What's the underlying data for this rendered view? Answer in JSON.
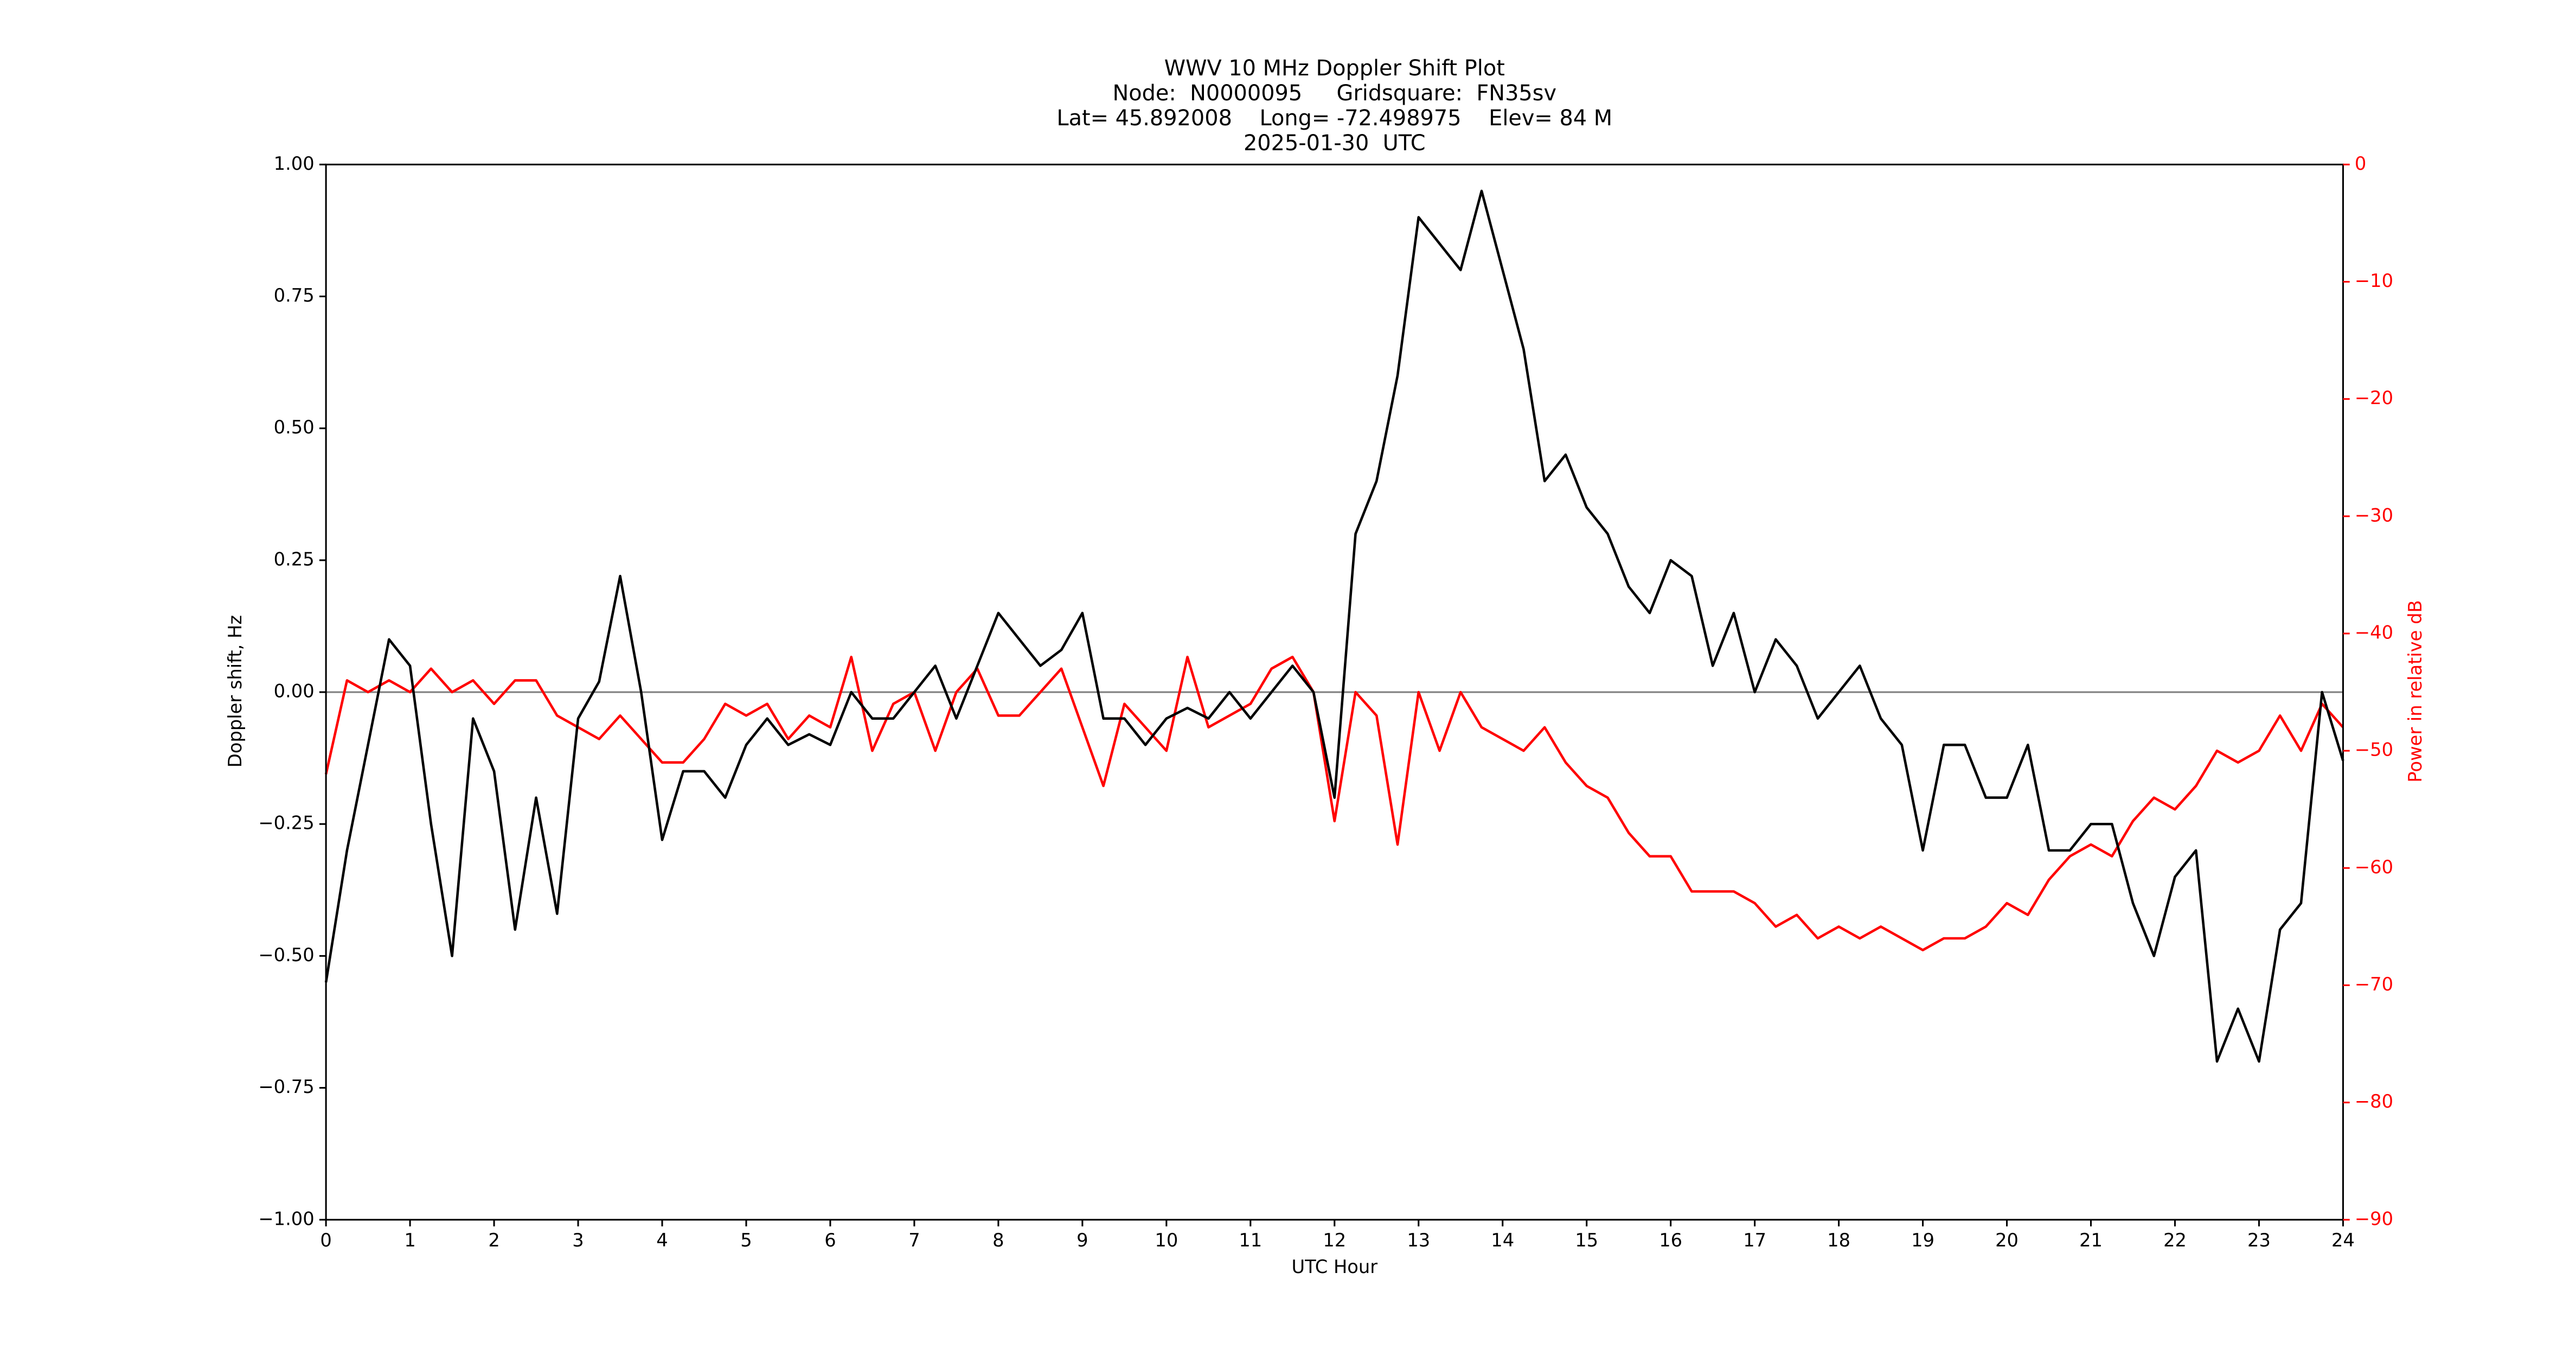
{
  "chart_data": {
    "type": "line",
    "title": "WWV 10 MHz Doppler Shift Plot",
    "subtitle": [
      "Node:  N0000095     Gridsquare:  FN35sv",
      "Lat= 45.892008    Long= -72.498975    Elev= 84 M",
      "2025-01-30  UTC"
    ],
    "xlabel": "UTC Hour",
    "ylabel": "Doppler shift, Hz",
    "y2label": "Power in relative dB",
    "y2color": "#ff0000",
    "hline": 0,
    "hline_color": "#808080",
    "x": [
      0,
      0.25,
      0.5,
      0.75,
      1,
      1.25,
      1.5,
      1.75,
      2,
      2.25,
      2.5,
      2.75,
      3,
      3.25,
      3.5,
      3.75,
      4,
      4.25,
      4.5,
      4.75,
      5,
      5.25,
      5.5,
      5.75,
      6,
      6.25,
      6.5,
      6.75,
      7,
      7.25,
      7.5,
      7.75,
      8,
      8.25,
      8.5,
      8.75,
      9,
      9.25,
      9.5,
      9.75,
      10,
      10.25,
      10.5,
      10.75,
      11,
      11.25,
      11.5,
      11.75,
      12,
      12.25,
      12.5,
      12.75,
      13,
      13.25,
      13.5,
      13.75,
      14,
      14.25,
      14.5,
      14.75,
      15,
      15.25,
      15.5,
      15.75,
      16,
      16.25,
      16.5,
      16.75,
      17,
      17.25,
      17.5,
      17.75,
      18,
      18.25,
      18.5,
      18.75,
      19,
      19.25,
      19.5,
      19.75,
      20,
      20.25,
      20.5,
      20.75,
      21,
      21.25,
      21.5,
      21.75,
      22,
      22.25,
      22.5,
      22.75,
      23,
      23.25,
      23.5,
      23.75,
      24
    ],
    "series": [
      {
        "color": "#000000",
        "axis": "y",
        "values": [
          -0.55,
          -0.3,
          -0.1,
          0.1,
          0.05,
          -0.25,
          -0.5,
          -0.05,
          -0.15,
          -0.45,
          -0.2,
          -0.42,
          -0.05,
          0.02,
          0.22,
          0,
          -0.28,
          -0.15,
          -0.15,
          -0.2,
          -0.1,
          -0.05,
          -0.1,
          -0.08,
          -0.1,
          0,
          -0.05,
          -0.05,
          0,
          0.05,
          -0.05,
          0.05,
          0.15,
          0.1,
          0.05,
          0.08,
          0.15,
          -0.05,
          -0.05,
          -0.1,
          -0.05,
          -0.03,
          -0.05,
          0,
          -0.05,
          0,
          0.05,
          0,
          -0.2,
          0.3,
          0.4,
          0.6,
          0.9,
          0.85,
          0.8,
          0.95,
          0.8,
          0.65,
          0.4,
          0.45,
          0.35,
          0.3,
          0.2,
          0.15,
          0.25,
          0.22,
          0.05,
          0.15,
          0,
          0.1,
          0.05,
          -0.05,
          0,
          0.05,
          -0.05,
          -0.1,
          -0.3,
          -0.1,
          -0.1,
          -0.2,
          -0.2,
          -0.1,
          -0.3,
          -0.3,
          -0.25,
          -0.25,
          -0.4,
          -0.5,
          -0.35,
          -0.3,
          -0.7,
          -0.6,
          -0.7,
          -0.45,
          -0.4,
          0,
          -0.13
        ]
      },
      {
        "color": "#ff0000",
        "axis": "y2",
        "values": [
          -52,
          -44,
          -45,
          -44,
          -45,
          -43,
          -45,
          -44,
          -46,
          -44,
          -44,
          -47,
          -48,
          -49,
          -47,
          -49,
          -51,
          -51,
          -49,
          -46,
          -47,
          -46,
          -49,
          -47,
          -48,
          -42,
          -50,
          -46,
          -45,
          -50,
          -45,
          -43,
          -47,
          -47,
          -45,
          -43,
          -48,
          -53,
          -46,
          -48,
          -50,
          -42,
          -48,
          -47,
          -46,
          -43,
          -42,
          -45,
          -56,
          -45,
          -47,
          -58,
          -45,
          -50,
          -45,
          -48,
          -49,
          -50,
          -48,
          -51,
          -53,
          -54,
          -57,
          -59,
          -59,
          -62,
          -62,
          -62,
          -63,
          -65,
          -64,
          -66,
          -65,
          -66,
          -65,
          -66,
          -67,
          -66,
          -66,
          -65,
          -63,
          -64,
          -61,
          -59,
          -58,
          -59,
          -56,
          -54,
          -55,
          -53,
          -50,
          -51,
          -50,
          -47,
          -50,
          -46,
          -48
        ]
      }
    ],
    "xlim": [
      0,
      24
    ],
    "xticks": [
      0,
      1,
      2,
      3,
      4,
      5,
      6,
      7,
      8,
      9,
      10,
      11,
      12,
      13,
      14,
      15,
      16,
      17,
      18,
      19,
      20,
      21,
      22,
      23,
      24
    ],
    "ylim": [
      -1,
      1
    ],
    "yticks": [
      {
        "value": -1,
        "label": "−1.00"
      },
      {
        "value": -0.75,
        "label": "−0.75"
      },
      {
        "value": -0.5,
        "label": "−0.50"
      },
      {
        "value": -0.25,
        "label": "−0.25"
      },
      {
        "value": 0,
        "label": "0.00"
      },
      {
        "value": 0.25,
        "label": "0.25"
      },
      {
        "value": 0.5,
        "label": "0.50"
      },
      {
        "value": 0.75,
        "label": "0.75"
      },
      {
        "value": 1,
        "label": "1.00"
      }
    ],
    "y2lim": [
      -90,
      0
    ],
    "y2ticks": [
      {
        "value": -90,
        "label": "−90"
      },
      {
        "value": -80,
        "label": "−80"
      },
      {
        "value": -70,
        "label": "−70"
      },
      {
        "value": -60,
        "label": "−60"
      },
      {
        "value": -50,
        "label": "−50"
      },
      {
        "value": -40,
        "label": "−40"
      },
      {
        "value": -30,
        "label": "−30"
      },
      {
        "value": -20,
        "label": "−20"
      },
      {
        "value": -10,
        "label": "−10"
      },
      0
    ]
  }
}
